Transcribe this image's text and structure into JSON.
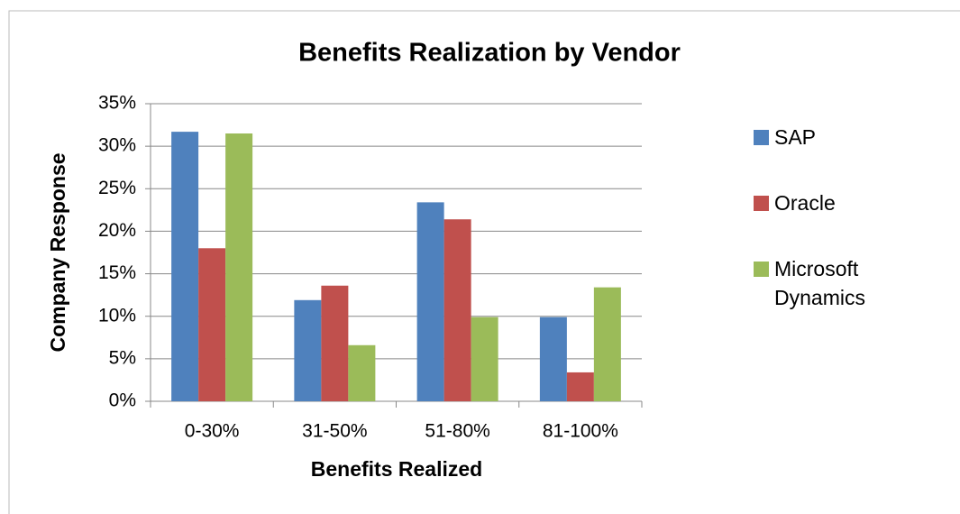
{
  "chart_data": {
    "type": "bar",
    "title": "Benefits Realization by Vendor",
    "x_label": "Benefits Realized",
    "y_label": "Company Response",
    "categories": [
      "0-30%",
      "31-50%",
      "51-80%",
      "81-100%"
    ],
    "series": [
      {
        "name": "SAP",
        "color": "#4f81bd",
        "values": [
          31.7,
          11.9,
          23.4,
          9.9
        ]
      },
      {
        "name": "Oracle",
        "color": "#c0504d",
        "values": [
          18.0,
          13.6,
          21.4,
          3.4
        ]
      },
      {
        "name": "Microsoft Dynamics",
        "color": "#9bbb59",
        "values": [
          31.5,
          6.6,
          9.9,
          13.4
        ]
      }
    ],
    "ylim": [
      0,
      35
    ],
    "yticks": [
      {
        "value": 0,
        "label": "0%"
      },
      {
        "value": 5,
        "label": "5%"
      },
      {
        "value": 10,
        "label": "10%"
      },
      {
        "value": 15,
        "label": "15%"
      },
      {
        "value": 20,
        "label": "20%"
      },
      {
        "value": 25,
        "label": "25%"
      },
      {
        "value": 30,
        "label": "30%"
      },
      {
        "value": 35,
        "label": "35%"
      }
    ],
    "grid": true,
    "legend": "right"
  }
}
